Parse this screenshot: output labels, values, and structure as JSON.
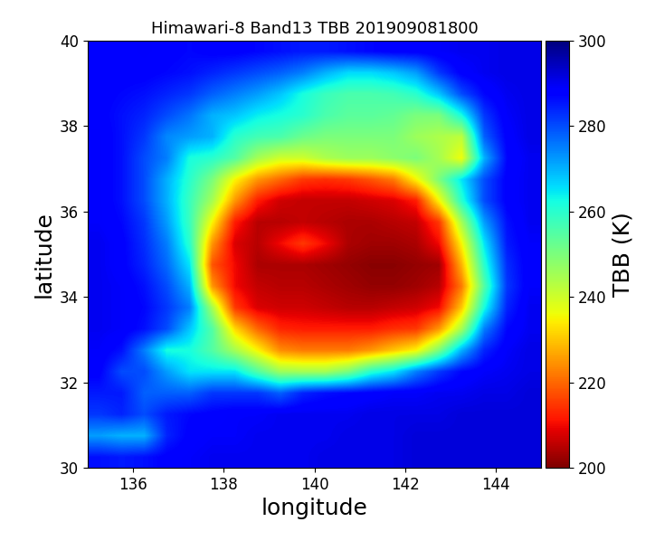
{
  "chart_data": {
    "type": "heatmap",
    "title": "Himawari-8 Band13 TBB 201909081800",
    "x_label": "longitude",
    "y_label": "latitude",
    "xlim": [
      135,
      145
    ],
    "ylim": [
      30,
      40
    ],
    "xticks": [
      136,
      138,
      140,
      142,
      144
    ],
    "yticks": [
      30,
      32,
      34,
      36,
      38,
      40
    ],
    "colorbar_label": "TBB (K)",
    "colorbar_range": [
      200,
      300
    ],
    "colorbar_ticks": [
      200,
      220,
      240,
      260,
      280,
      300
    ],
    "cells": [
      [
        288,
        288,
        289,
        288,
        287,
        288,
        288,
        287,
        286,
        285,
        285,
        286,
        287,
        288,
        288,
        289,
        290,
        290,
        291,
        291
      ],
      [
        288,
        288,
        288,
        287,
        286,
        284,
        282,
        280,
        278,
        275,
        270,
        266,
        266,
        268,
        272,
        282,
        288,
        290,
        291,
        291
      ],
      [
        288,
        287,
        286,
        284,
        282,
        278,
        275,
        272,
        268,
        262,
        258,
        256,
        256,
        257,
        260,
        268,
        280,
        287,
        290,
        291
      ],
      [
        288,
        286,
        284,
        280,
        276,
        270,
        268,
        264,
        262,
        260,
        256,
        254,
        254,
        253,
        250,
        250,
        262,
        282,
        289,
        291
      ],
      [
        289,
        286,
        282,
        274,
        272,
        270,
        260,
        257,
        256,
        252,
        250,
        250,
        250,
        250,
        246,
        244,
        242,
        278,
        288,
        291
      ],
      [
        289,
        286,
        280,
        275,
        262,
        260,
        255,
        245,
        240,
        240,
        244,
        246,
        246,
        248,
        250,
        245,
        236,
        270,
        287,
        290
      ],
      [
        289,
        286,
        280,
        270,
        260,
        250,
        235,
        225,
        220,
        215,
        214,
        215,
        218,
        222,
        235,
        250,
        265,
        280,
        288,
        290
      ],
      [
        289,
        286,
        280,
        270,
        258,
        245,
        225,
        212,
        207,
        206,
        206,
        206,
        207,
        208,
        212,
        235,
        260,
        280,
        288,
        290
      ],
      [
        289,
        287,
        282,
        272,
        258,
        235,
        212,
        205,
        205,
        206,
        205,
        204,
        204,
        205,
        206,
        215,
        245,
        272,
        286,
        290
      ],
      [
        290,
        288,
        283,
        275,
        260,
        225,
        208,
        205,
        210,
        215,
        210,
        204,
        203,
        203,
        204,
        210,
        235,
        265,
        285,
        289
      ],
      [
        290,
        288,
        284,
        277,
        265,
        218,
        210,
        204,
        204,
        204,
        203,
        202,
        201,
        201,
        202,
        203,
        228,
        260,
        283,
        289
      ],
      [
        290,
        289,
        286,
        280,
        270,
        225,
        210,
        206,
        205,
        205,
        204,
        203,
        202,
        202,
        203,
        205,
        222,
        255,
        282,
        289
      ],
      [
        290,
        289,
        287,
        282,
        275,
        245,
        215,
        208,
        207,
        207,
        206,
        205,
        205,
        206,
        207,
        210,
        230,
        262,
        284,
        290
      ],
      [
        290,
        289,
        286,
        280,
        268,
        255,
        232,
        220,
        213,
        212,
        212,
        212,
        212,
        214,
        215,
        225,
        245,
        275,
        287,
        290
      ],
      [
        289,
        286,
        275,
        262,
        262,
        255,
        245,
        235,
        224,
        222,
        222,
        222,
        225,
        230,
        235,
        250,
        270,
        284,
        289,
        291
      ],
      [
        288,
        280,
        280,
        272,
        265,
        265,
        265,
        255,
        246,
        245,
        245,
        250,
        260,
        265,
        275,
        282,
        287,
        289,
        290,
        291
      ],
      [
        285,
        285,
        278,
        278,
        278,
        282,
        282,
        282,
        278,
        284,
        286,
        287,
        288,
        289,
        289,
        290,
        290,
        291,
        291,
        292
      ],
      [
        282,
        284,
        280,
        285,
        287,
        288,
        289,
        289,
        290,
        290,
        290,
        290,
        291,
        291,
        291,
        291,
        292,
        292,
        292,
        292
      ],
      [
        272,
        270,
        270,
        284,
        288,
        289,
        289,
        290,
        290,
        290,
        290,
        291,
        291,
        291,
        292,
        292,
        292,
        292,
        292,
        292
      ],
      [
        286,
        285,
        286,
        288,
        289,
        290,
        290,
        290,
        290,
        290,
        291,
        291,
        291,
        291,
        292,
        292,
        292,
        292,
        292,
        292
      ]
    ]
  }
}
